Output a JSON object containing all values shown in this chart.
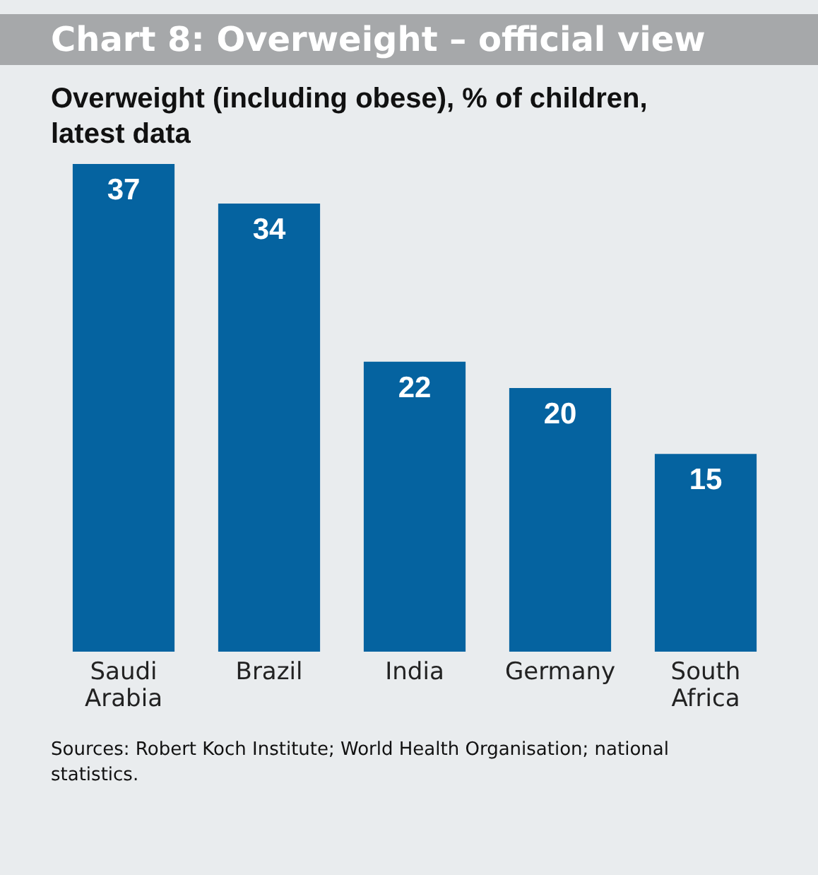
{
  "chart_data": {
    "type": "bar",
    "title": "Chart 8: Overweight – official view",
    "subtitle": "Overweight (including obese), % of children, latest data",
    "categories": [
      "Saudi Arabia",
      "Brazil",
      "India",
      "Germany",
      "South Africa"
    ],
    "values": [
      37,
      34,
      22,
      20,
      15
    ],
    "color": "#0563a0",
    "data_labels": true,
    "annotations": [
      "Sources: Robert Koch Institute; World Health Organisation; national statistics."
    ]
  }
}
